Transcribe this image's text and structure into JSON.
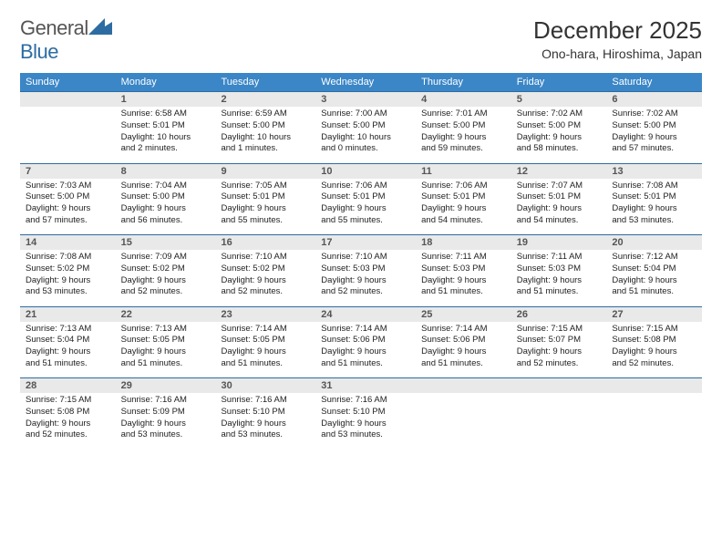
{
  "brand": {
    "part1": "General",
    "part2": "Blue"
  },
  "title": "December 2025",
  "location": "Ono-hara, Hiroshima, Japan",
  "colors": {
    "header_bg": "#3b86c6",
    "border": "#2d6ca2",
    "daynum_bg": "#e9e9e9",
    "text": "#222222",
    "title": "#333333"
  },
  "day_headers": [
    "Sunday",
    "Monday",
    "Tuesday",
    "Wednesday",
    "Thursday",
    "Friday",
    "Saturday"
  ],
  "weeks": [
    [
      {
        "n": "",
        "lines": []
      },
      {
        "n": "1",
        "lines": [
          "Sunrise: 6:58 AM",
          "Sunset: 5:01 PM",
          "Daylight: 10 hours",
          "and 2 minutes."
        ]
      },
      {
        "n": "2",
        "lines": [
          "Sunrise: 6:59 AM",
          "Sunset: 5:00 PM",
          "Daylight: 10 hours",
          "and 1 minutes."
        ]
      },
      {
        "n": "3",
        "lines": [
          "Sunrise: 7:00 AM",
          "Sunset: 5:00 PM",
          "Daylight: 10 hours",
          "and 0 minutes."
        ]
      },
      {
        "n": "4",
        "lines": [
          "Sunrise: 7:01 AM",
          "Sunset: 5:00 PM",
          "Daylight: 9 hours",
          "and 59 minutes."
        ]
      },
      {
        "n": "5",
        "lines": [
          "Sunrise: 7:02 AM",
          "Sunset: 5:00 PM",
          "Daylight: 9 hours",
          "and 58 minutes."
        ]
      },
      {
        "n": "6",
        "lines": [
          "Sunrise: 7:02 AM",
          "Sunset: 5:00 PM",
          "Daylight: 9 hours",
          "and 57 minutes."
        ]
      }
    ],
    [
      {
        "n": "7",
        "lines": [
          "Sunrise: 7:03 AM",
          "Sunset: 5:00 PM",
          "Daylight: 9 hours",
          "and 57 minutes."
        ]
      },
      {
        "n": "8",
        "lines": [
          "Sunrise: 7:04 AM",
          "Sunset: 5:00 PM",
          "Daylight: 9 hours",
          "and 56 minutes."
        ]
      },
      {
        "n": "9",
        "lines": [
          "Sunrise: 7:05 AM",
          "Sunset: 5:01 PM",
          "Daylight: 9 hours",
          "and 55 minutes."
        ]
      },
      {
        "n": "10",
        "lines": [
          "Sunrise: 7:06 AM",
          "Sunset: 5:01 PM",
          "Daylight: 9 hours",
          "and 55 minutes."
        ]
      },
      {
        "n": "11",
        "lines": [
          "Sunrise: 7:06 AM",
          "Sunset: 5:01 PM",
          "Daylight: 9 hours",
          "and 54 minutes."
        ]
      },
      {
        "n": "12",
        "lines": [
          "Sunrise: 7:07 AM",
          "Sunset: 5:01 PM",
          "Daylight: 9 hours",
          "and 54 minutes."
        ]
      },
      {
        "n": "13",
        "lines": [
          "Sunrise: 7:08 AM",
          "Sunset: 5:01 PM",
          "Daylight: 9 hours",
          "and 53 minutes."
        ]
      }
    ],
    [
      {
        "n": "14",
        "lines": [
          "Sunrise: 7:08 AM",
          "Sunset: 5:02 PM",
          "Daylight: 9 hours",
          "and 53 minutes."
        ]
      },
      {
        "n": "15",
        "lines": [
          "Sunrise: 7:09 AM",
          "Sunset: 5:02 PM",
          "Daylight: 9 hours",
          "and 52 minutes."
        ]
      },
      {
        "n": "16",
        "lines": [
          "Sunrise: 7:10 AM",
          "Sunset: 5:02 PM",
          "Daylight: 9 hours",
          "and 52 minutes."
        ]
      },
      {
        "n": "17",
        "lines": [
          "Sunrise: 7:10 AM",
          "Sunset: 5:03 PM",
          "Daylight: 9 hours",
          "and 52 minutes."
        ]
      },
      {
        "n": "18",
        "lines": [
          "Sunrise: 7:11 AM",
          "Sunset: 5:03 PM",
          "Daylight: 9 hours",
          "and 51 minutes."
        ]
      },
      {
        "n": "19",
        "lines": [
          "Sunrise: 7:11 AM",
          "Sunset: 5:03 PM",
          "Daylight: 9 hours",
          "and 51 minutes."
        ]
      },
      {
        "n": "20",
        "lines": [
          "Sunrise: 7:12 AM",
          "Sunset: 5:04 PM",
          "Daylight: 9 hours",
          "and 51 minutes."
        ]
      }
    ],
    [
      {
        "n": "21",
        "lines": [
          "Sunrise: 7:13 AM",
          "Sunset: 5:04 PM",
          "Daylight: 9 hours",
          "and 51 minutes."
        ]
      },
      {
        "n": "22",
        "lines": [
          "Sunrise: 7:13 AM",
          "Sunset: 5:05 PM",
          "Daylight: 9 hours",
          "and 51 minutes."
        ]
      },
      {
        "n": "23",
        "lines": [
          "Sunrise: 7:14 AM",
          "Sunset: 5:05 PM",
          "Daylight: 9 hours",
          "and 51 minutes."
        ]
      },
      {
        "n": "24",
        "lines": [
          "Sunrise: 7:14 AM",
          "Sunset: 5:06 PM",
          "Daylight: 9 hours",
          "and 51 minutes."
        ]
      },
      {
        "n": "25",
        "lines": [
          "Sunrise: 7:14 AM",
          "Sunset: 5:06 PM",
          "Daylight: 9 hours",
          "and 51 minutes."
        ]
      },
      {
        "n": "26",
        "lines": [
          "Sunrise: 7:15 AM",
          "Sunset: 5:07 PM",
          "Daylight: 9 hours",
          "and 52 minutes."
        ]
      },
      {
        "n": "27",
        "lines": [
          "Sunrise: 7:15 AM",
          "Sunset: 5:08 PM",
          "Daylight: 9 hours",
          "and 52 minutes."
        ]
      }
    ],
    [
      {
        "n": "28",
        "lines": [
          "Sunrise: 7:15 AM",
          "Sunset: 5:08 PM",
          "Daylight: 9 hours",
          "and 52 minutes."
        ]
      },
      {
        "n": "29",
        "lines": [
          "Sunrise: 7:16 AM",
          "Sunset: 5:09 PM",
          "Daylight: 9 hours",
          "and 53 minutes."
        ]
      },
      {
        "n": "30",
        "lines": [
          "Sunrise: 7:16 AM",
          "Sunset: 5:10 PM",
          "Daylight: 9 hours",
          "and 53 minutes."
        ]
      },
      {
        "n": "31",
        "lines": [
          "Sunrise: 7:16 AM",
          "Sunset: 5:10 PM",
          "Daylight: 9 hours",
          "and 53 minutes."
        ]
      },
      {
        "n": "",
        "lines": []
      },
      {
        "n": "",
        "lines": []
      },
      {
        "n": "",
        "lines": []
      }
    ]
  ]
}
